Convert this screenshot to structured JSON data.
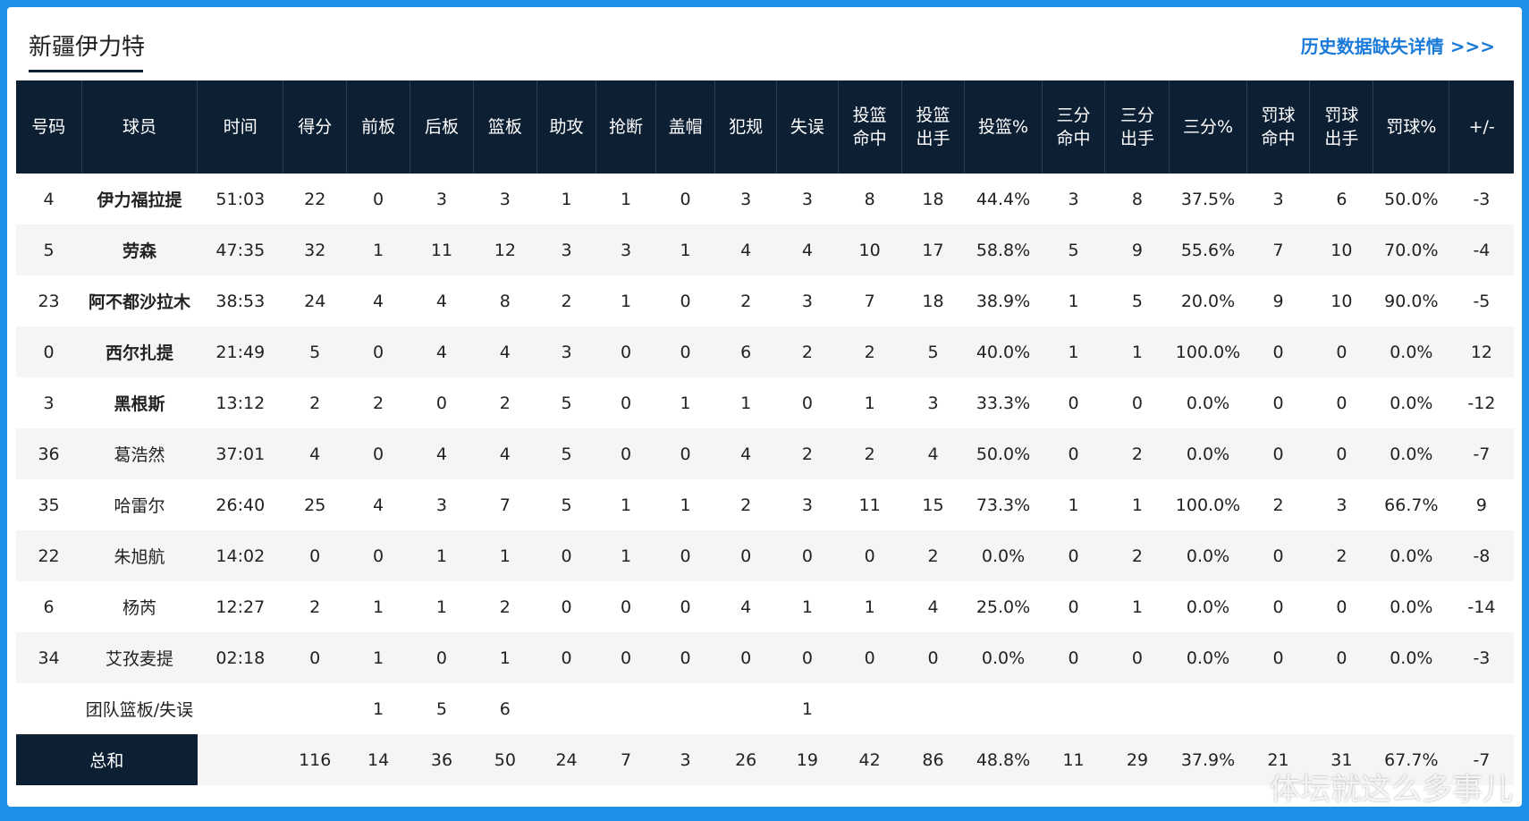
{
  "header": {
    "team_name": "新疆伊力特",
    "history_link": "历史数据缺失详情 >>>"
  },
  "columns": [
    "号码",
    "球员",
    "时间",
    "得分",
    "前板",
    "后板",
    "篮板",
    "助攻",
    "抢断",
    "盖帽",
    "犯规",
    "失误",
    "投篮\n命中",
    "投篮\n出手",
    "投篮%",
    "三分\n命中",
    "三分\n出手",
    "三分%",
    "罚球\n命中",
    "罚球\n出手",
    "罚球%",
    "+/-"
  ],
  "players": [
    {
      "cells": [
        "4",
        "伊力福拉提",
        "51:03",
        "22",
        "0",
        "3",
        "3",
        "1",
        "1",
        "0",
        "3",
        "3",
        "8",
        "18",
        "44.4%",
        "3",
        "8",
        "37.5%",
        "3",
        "6",
        "50.0%",
        "-3"
      ],
      "starter": true
    },
    {
      "cells": [
        "5",
        "劳森",
        "47:35",
        "32",
        "1",
        "11",
        "12",
        "3",
        "3",
        "1",
        "4",
        "4",
        "10",
        "17",
        "58.8%",
        "5",
        "9",
        "55.6%",
        "7",
        "10",
        "70.0%",
        "-4"
      ],
      "starter": true
    },
    {
      "cells": [
        "23",
        "阿不都沙拉木",
        "38:53",
        "24",
        "4",
        "4",
        "8",
        "2",
        "1",
        "0",
        "2",
        "3",
        "7",
        "18",
        "38.9%",
        "1",
        "5",
        "20.0%",
        "9",
        "10",
        "90.0%",
        "-5"
      ],
      "starter": true
    },
    {
      "cells": [
        "0",
        "西尔扎提",
        "21:49",
        "5",
        "0",
        "4",
        "4",
        "3",
        "0",
        "0",
        "6",
        "2",
        "2",
        "5",
        "40.0%",
        "1",
        "1",
        "100.0%",
        "0",
        "0",
        "0.0%",
        "12"
      ],
      "starter": true
    },
    {
      "cells": [
        "3",
        "黑根斯",
        "13:12",
        "2",
        "2",
        "0",
        "2",
        "5",
        "0",
        "1",
        "1",
        "0",
        "1",
        "3",
        "33.3%",
        "0",
        "0",
        "0.0%",
        "0",
        "0",
        "0.0%",
        "-12"
      ],
      "starter": true
    },
    {
      "cells": [
        "36",
        "葛浩然",
        "37:01",
        "4",
        "0",
        "4",
        "4",
        "5",
        "0",
        "0",
        "4",
        "2",
        "2",
        "4",
        "50.0%",
        "0",
        "2",
        "0.0%",
        "0",
        "0",
        "0.0%",
        "-7"
      ],
      "starter": false
    },
    {
      "cells": [
        "35",
        "哈雷尔",
        "26:40",
        "25",
        "4",
        "3",
        "7",
        "5",
        "1",
        "1",
        "2",
        "3",
        "11",
        "15",
        "73.3%",
        "1",
        "1",
        "100.0%",
        "2",
        "3",
        "66.7%",
        "9"
      ],
      "starter": false
    },
    {
      "cells": [
        "22",
        "朱旭航",
        "14:02",
        "0",
        "0",
        "1",
        "1",
        "0",
        "1",
        "0",
        "0",
        "0",
        "0",
        "2",
        "0.0%",
        "0",
        "2",
        "0.0%",
        "0",
        "2",
        "0.0%",
        "-8"
      ],
      "starter": false
    },
    {
      "cells": [
        "6",
        "杨芮",
        "12:27",
        "2",
        "1",
        "1",
        "2",
        "0",
        "0",
        "0",
        "4",
        "1",
        "1",
        "4",
        "25.0%",
        "0",
        "1",
        "0.0%",
        "0",
        "0",
        "0.0%",
        "-14"
      ],
      "starter": false
    },
    {
      "cells": [
        "34",
        "艾孜麦提",
        "02:18",
        "0",
        "1",
        "0",
        "1",
        "0",
        "0",
        "0",
        "0",
        "0",
        "0",
        "0",
        "0.0%",
        "0",
        "0",
        "0.0%",
        "0",
        "0",
        "0.0%",
        "-3"
      ],
      "starter": false
    }
  ],
  "team_row": {
    "label": "团队篮板/失误",
    "off_reb": "1",
    "def_reb": "5",
    "reb": "6",
    "turnovers": "1"
  },
  "total_row": {
    "label": "总和",
    "cells": [
      "",
      "116",
      "14",
      "36",
      "50",
      "24",
      "7",
      "3",
      "26",
      "19",
      "42",
      "86",
      "48.8%",
      "11",
      "29",
      "37.9%",
      "21",
      "31",
      "67.7%",
      "-7"
    ]
  },
  "watermark": "体坛就这么多事儿"
}
